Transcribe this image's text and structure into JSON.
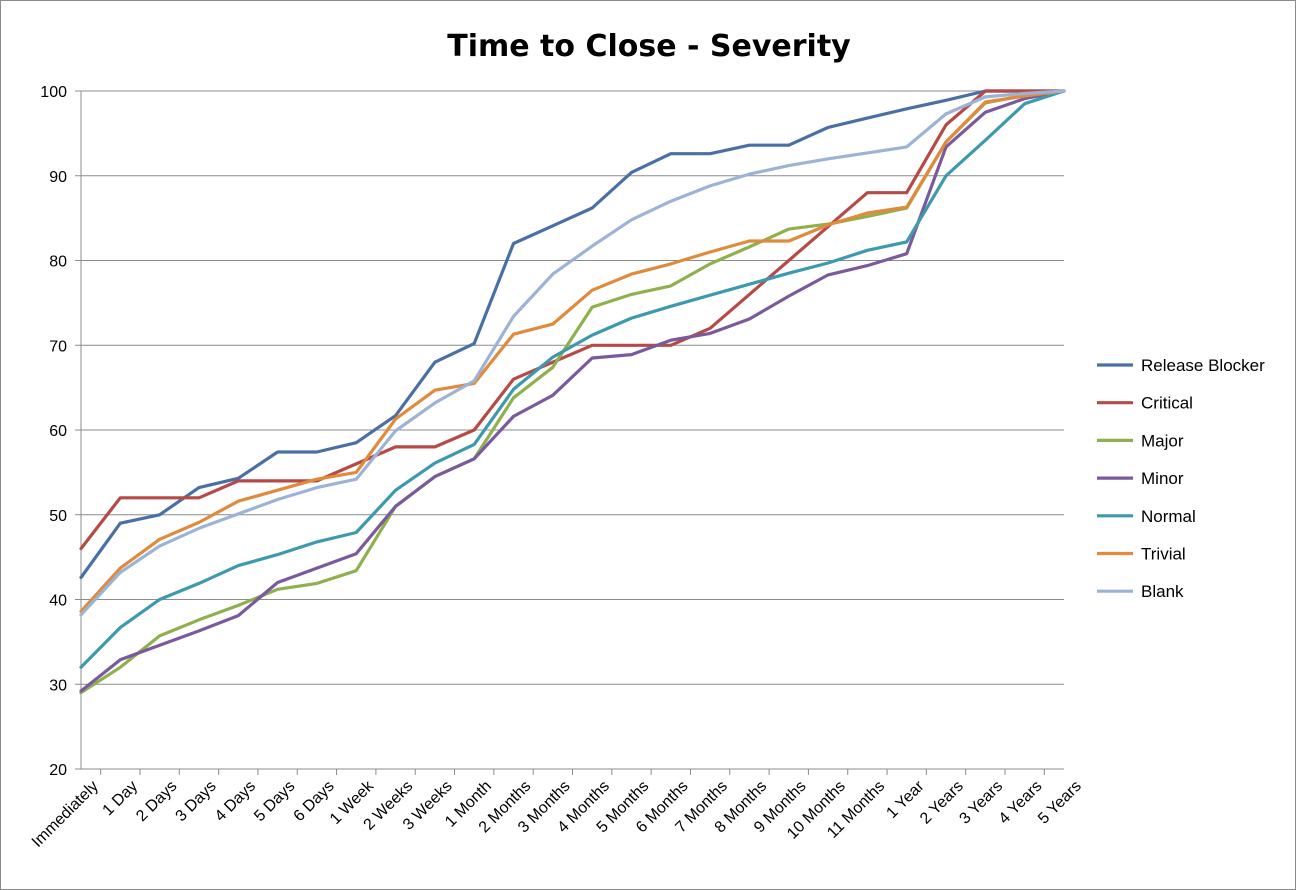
{
  "chart_data": {
    "type": "line",
    "title": "Time to Close - Severity",
    "xlabel": "",
    "ylabel": "",
    "ylim": [
      20,
      100
    ],
    "yticks": [
      20,
      30,
      40,
      50,
      60,
      70,
      80,
      90,
      100
    ],
    "grid": true,
    "legend_position": "right",
    "categories": [
      "Immediately",
      "1 Day",
      "2 Days",
      "3 Days",
      "4 Days",
      "5 Days",
      "6 Days",
      "1 Week",
      "2 Weeks",
      "3 Weeks",
      "1 Month",
      "2 Months",
      "3 Months",
      "4 Months",
      "5 Months",
      "6 Months",
      "7 Months",
      "8 Months",
      "9 Months",
      "10 Months",
      "11 Months",
      "1 Year",
      "2 Years",
      "3 Years",
      "4 Years",
      "5 Years"
    ],
    "series": [
      {
        "name": "Release Blocker",
        "color": "#4a6fa5",
        "values": [
          42.6,
          49,
          50,
          53.2,
          54.3,
          57.4,
          57.4,
          58.5,
          61.7,
          68,
          70.2,
          82,
          84.1,
          86.2,
          90.4,
          92.6,
          92.6,
          93.6,
          93.6,
          95.7,
          96.8,
          97.9,
          98.9,
          100,
          100,
          100
        ]
      },
      {
        "name": "Critical",
        "color": "#b54a47",
        "values": [
          46,
          52,
          52,
          52,
          54,
          54,
          54,
          56,
          58,
          58,
          60,
          66,
          68,
          70,
          70,
          70,
          72,
          76,
          80,
          84,
          88,
          88,
          96,
          100,
          100,
          100
        ]
      },
      {
        "name": "Major",
        "color": "#8fb04d",
        "values": [
          29,
          32,
          35.7,
          37.6,
          39.3,
          41.2,
          41.9,
          43.4,
          51,
          54.5,
          56.6,
          63.8,
          67.4,
          74.5,
          76,
          77,
          79.6,
          81.6,
          83.7,
          84.3,
          85.2,
          86.2,
          94,
          98.6,
          99.5,
          100
        ]
      },
      {
        "name": "Minor",
        "color": "#7a5a9c",
        "values": [
          29.2,
          32.9,
          34.6,
          36.3,
          38.1,
          42,
          43.7,
          45.4,
          51,
          54.5,
          56.6,
          61.6,
          64.1,
          68.5,
          68.9,
          70.6,
          71.4,
          73.1,
          75.8,
          78.3,
          79.4,
          80.8,
          93.4,
          97.5,
          99.1,
          100
        ]
      },
      {
        "name": "Normal",
        "color": "#3d9aae",
        "values": [
          32,
          36.7,
          40,
          41.9,
          44,
          45.3,
          46.8,
          47.9,
          52.9,
          56.1,
          58.3,
          64.8,
          68.6,
          71.2,
          73.2,
          74.6,
          75.9,
          77.2,
          78.5,
          79.7,
          81.2,
          82.2,
          90,
          94.2,
          98.5,
          100
        ]
      },
      {
        "name": "Trivial",
        "color": "#e08a3c",
        "values": [
          38.6,
          43.7,
          47.1,
          49.1,
          51.6,
          52.9,
          54.2,
          55,
          61.3,
          64.7,
          65.5,
          71.3,
          72.5,
          76.5,
          78.4,
          79.6,
          81,
          82.3,
          82.3,
          84.2,
          85.6,
          86.3,
          94,
          98.7,
          99.4,
          100
        ]
      },
      {
        "name": "Blank",
        "color": "#9db3d6",
        "values": [
          38.2,
          43.2,
          46.3,
          48.4,
          50.1,
          51.8,
          53.2,
          54.2,
          59.9,
          63.2,
          65.8,
          73.4,
          78.4,
          81.7,
          84.8,
          87,
          88.8,
          90.2,
          91.2,
          92,
          92.7,
          93.4,
          97.3,
          99.3,
          99.7,
          100
        ]
      }
    ]
  }
}
